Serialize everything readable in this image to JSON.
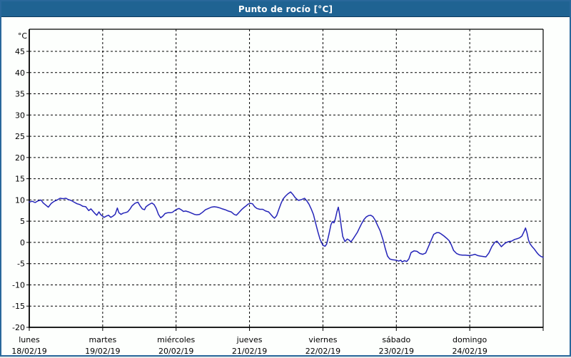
{
  "title_bar": {
    "title": "Punto de rocío [°C]"
  },
  "colors": {
    "titlebar_bg": "#1f6392",
    "titlebar_text": "#ffffff",
    "frame_border": "#29689b",
    "plot_bg": "#fdfffd",
    "grid": "#000000",
    "axis": "#000000",
    "line": "#2424b8"
  },
  "chart_data": {
    "type": "line",
    "title": "Punto de rocío [°C]",
    "xlabel": "",
    "ylabel": "°C",
    "ylim": [
      -20,
      50
    ],
    "y_ticks": [
      45,
      40,
      35,
      30,
      25,
      20,
      15,
      10,
      5,
      0,
      -5,
      -10,
      -15,
      -20
    ],
    "grid": "dashed",
    "legend_position": "none",
    "x_days": [
      {
        "name": "lunes",
        "date": "18/02/19"
      },
      {
        "name": "martes",
        "date": "19/02/19"
      },
      {
        "name": "miércoles",
        "date": "20/02/19"
      },
      {
        "name": "jueves",
        "date": "21/02/19"
      },
      {
        "name": "viernes",
        "date": "22/02/19"
      },
      {
        "name": "sábado",
        "date": "23/02/19"
      },
      {
        "name": "domingo",
        "date": "24/02/19"
      }
    ],
    "series": [
      {
        "name": "punto_de_rocio",
        "color": "#2424b8",
        "x_unit": "days_since_18/02/19",
        "y_unit": "°C",
        "points": [
          [
            0.0,
            9.5
          ],
          [
            0.04,
            9.7
          ],
          [
            0.08,
            9.4
          ],
          [
            0.12,
            9.8
          ],
          [
            0.16,
            10.0
          ],
          [
            0.19,
            9.3
          ],
          [
            0.23,
            8.7
          ],
          [
            0.26,
            8.3
          ],
          [
            0.3,
            9.2
          ],
          [
            0.34,
            9.7
          ],
          [
            0.38,
            10.0
          ],
          [
            0.42,
            10.4
          ],
          [
            0.46,
            10.3
          ],
          [
            0.5,
            10.4
          ],
          [
            0.53,
            10.1
          ],
          [
            0.57,
            9.9
          ],
          [
            0.61,
            9.5
          ],
          [
            0.65,
            9.1
          ],
          [
            0.69,
            8.9
          ],
          [
            0.73,
            8.5
          ],
          [
            0.77,
            8.4
          ],
          [
            0.81,
            7.5
          ],
          [
            0.84,
            7.9
          ],
          [
            0.87,
            7.3
          ],
          [
            0.89,
            6.9
          ],
          [
            0.92,
            6.4
          ],
          [
            0.95,
            7.2
          ],
          [
            0.97,
            6.6
          ],
          [
            0.99,
            6.3
          ],
          [
            1.02,
            5.9
          ],
          [
            1.05,
            6.2
          ],
          [
            1.08,
            6.4
          ],
          [
            1.11,
            5.9
          ],
          [
            1.14,
            6.2
          ],
          [
            1.17,
            6.6
          ],
          [
            1.2,
            8.1
          ],
          [
            1.22,
            7.0
          ],
          [
            1.25,
            6.6
          ],
          [
            1.28,
            6.9
          ],
          [
            1.31,
            7.0
          ],
          [
            1.34,
            7.2
          ],
          [
            1.37,
            7.8
          ],
          [
            1.4,
            8.6
          ],
          [
            1.44,
            9.2
          ],
          [
            1.48,
            9.5
          ],
          [
            1.51,
            8.6
          ],
          [
            1.54,
            7.9
          ],
          [
            1.57,
            7.7
          ],
          [
            1.59,
            8.4
          ],
          [
            1.63,
            8.9
          ],
          [
            1.67,
            9.3
          ],
          [
            1.7,
            8.9
          ],
          [
            1.73,
            8.0
          ],
          [
            1.76,
            6.6
          ],
          [
            1.79,
            5.8
          ],
          [
            1.82,
            6.2
          ],
          [
            1.85,
            6.8
          ],
          [
            1.89,
            7.0
          ],
          [
            1.93,
            7.0
          ],
          [
            1.95,
            7.1
          ],
          [
            1.98,
            7.5
          ],
          [
            2.01,
            7.8
          ],
          [
            2.04,
            8.0
          ],
          [
            2.07,
            7.7
          ],
          [
            2.1,
            7.3
          ],
          [
            2.13,
            7.4
          ],
          [
            2.17,
            7.2
          ],
          [
            2.21,
            6.9
          ],
          [
            2.25,
            6.6
          ],
          [
            2.28,
            6.5
          ],
          [
            2.32,
            6.6
          ],
          [
            2.36,
            7.1
          ],
          [
            2.4,
            7.7
          ],
          [
            2.44,
            8.0
          ],
          [
            2.48,
            8.3
          ],
          [
            2.52,
            8.4
          ],
          [
            2.56,
            8.3
          ],
          [
            2.6,
            8.1
          ],
          [
            2.63,
            7.9
          ],
          [
            2.67,
            7.7
          ],
          [
            2.71,
            7.4
          ],
          [
            2.75,
            7.2
          ],
          [
            2.79,
            6.6
          ],
          [
            2.82,
            6.4
          ],
          [
            2.85,
            6.9
          ],
          [
            2.89,
            7.7
          ],
          [
            2.93,
            8.3
          ],
          [
            2.96,
            8.7
          ],
          [
            2.98,
            9.0
          ],
          [
            3.01,
            9.2
          ],
          [
            3.04,
            9.1
          ],
          [
            3.07,
            8.4
          ],
          [
            3.1,
            8.0
          ],
          [
            3.14,
            7.8
          ],
          [
            3.18,
            7.8
          ],
          [
            3.22,
            7.4
          ],
          [
            3.26,
            7.2
          ],
          [
            3.29,
            6.6
          ],
          [
            3.32,
            6.0
          ],
          [
            3.34,
            5.7
          ],
          [
            3.37,
            6.3
          ],
          [
            3.4,
            7.8
          ],
          [
            3.43,
            9.2
          ],
          [
            3.46,
            10.3
          ],
          [
            3.49,
            10.9
          ],
          [
            3.52,
            11.4
          ],
          [
            3.56,
            11.9
          ],
          [
            3.59,
            11.3
          ],
          [
            3.62,
            10.6
          ],
          [
            3.65,
            10.1
          ],
          [
            3.67,
            9.9
          ],
          [
            3.71,
            10.1
          ],
          [
            3.75,
            10.4
          ],
          [
            3.78,
            9.8
          ],
          [
            3.81,
            9.0
          ],
          [
            3.84,
            7.9
          ],
          [
            3.87,
            6.6
          ],
          [
            3.9,
            4.6
          ],
          [
            3.93,
            2.6
          ],
          [
            3.96,
            0.8
          ],
          [
            4.0,
            -0.7
          ],
          [
            4.03,
            -0.9
          ],
          [
            4.05,
            -0.4
          ],
          [
            4.08,
            1.8
          ],
          [
            4.11,
            4.2
          ],
          [
            4.13,
            4.9
          ],
          [
            4.15,
            4.6
          ],
          [
            4.17,
            5.6
          ],
          [
            4.19,
            7.2
          ],
          [
            4.21,
            8.3
          ],
          [
            4.23,
            6.3
          ],
          [
            4.25,
            3.8
          ],
          [
            4.27,
            1.4
          ],
          [
            4.3,
            0.2
          ],
          [
            4.33,
            0.8
          ],
          [
            4.36,
            0.5
          ],
          [
            4.38,
            0.1
          ],
          [
            4.41,
            0.8
          ],
          [
            4.44,
            1.6
          ],
          [
            4.47,
            2.4
          ],
          [
            4.5,
            3.5
          ],
          [
            4.53,
            4.5
          ],
          [
            4.56,
            5.4
          ],
          [
            4.59,
            6.0
          ],
          [
            4.62,
            6.3
          ],
          [
            4.65,
            6.4
          ],
          [
            4.68,
            6.1
          ],
          [
            4.71,
            5.3
          ],
          [
            4.74,
            4.2
          ],
          [
            4.78,
            2.7
          ],
          [
            4.82,
            0.5
          ],
          [
            4.85,
            -1.5
          ],
          [
            4.88,
            -3.2
          ],
          [
            4.91,
            -3.9
          ],
          [
            4.95,
            -4.1
          ],
          [
            5.0,
            -4.2
          ],
          [
            5.03,
            -4.4
          ],
          [
            5.06,
            -4.2
          ],
          [
            5.08,
            -4.6
          ],
          [
            5.11,
            -4.3
          ],
          [
            5.14,
            -4.5
          ],
          [
            5.17,
            -3.9
          ],
          [
            5.2,
            -2.4
          ],
          [
            5.24,
            -2.0
          ],
          [
            5.28,
            -2.1
          ],
          [
            5.32,
            -2.6
          ],
          [
            5.36,
            -2.8
          ],
          [
            5.4,
            -2.5
          ],
          [
            5.43,
            -1.3
          ],
          [
            5.47,
            0.3
          ],
          [
            5.51,
            1.9
          ],
          [
            5.55,
            2.3
          ],
          [
            5.58,
            2.3
          ],
          [
            5.61,
            2.0
          ],
          [
            5.65,
            1.5
          ],
          [
            5.69,
            0.9
          ],
          [
            5.72,
            0.4
          ],
          [
            5.75,
            -0.6
          ],
          [
            5.78,
            -1.9
          ],
          [
            5.82,
            -2.6
          ],
          [
            5.86,
            -2.9
          ],
          [
            5.9,
            -3.0
          ],
          [
            5.94,
            -3.0
          ],
          [
            5.99,
            -3.1
          ],
          [
            6.03,
            -3.0
          ],
          [
            6.07,
            -2.8
          ],
          [
            6.11,
            -3.1
          ],
          [
            6.14,
            -3.2
          ],
          [
            6.18,
            -3.3
          ],
          [
            6.22,
            -3.4
          ],
          [
            6.26,
            -2.5
          ],
          [
            6.3,
            -1.0
          ],
          [
            6.34,
            0.0
          ],
          [
            6.37,
            0.3
          ],
          [
            6.4,
            -0.3
          ],
          [
            6.43,
            -1.0
          ],
          [
            6.46,
            -0.5
          ],
          [
            6.49,
            -0.1
          ],
          [
            6.53,
            0.2
          ],
          [
            6.57,
            0.3
          ],
          [
            6.61,
            0.7
          ],
          [
            6.65,
            0.9
          ],
          [
            6.68,
            1.1
          ],
          [
            6.71,
            1.5
          ],
          [
            6.74,
            2.6
          ],
          [
            6.76,
            3.4
          ],
          [
            6.78,
            2.2
          ],
          [
            6.8,
            0.6
          ],
          [
            6.82,
            -0.3
          ],
          [
            6.85,
            -1.0
          ],
          [
            6.88,
            -1.6
          ],
          [
            6.91,
            -2.3
          ],
          [
            6.94,
            -2.9
          ],
          [
            6.97,
            -3.3
          ],
          [
            7.0,
            -3.5
          ]
        ]
      }
    ]
  }
}
